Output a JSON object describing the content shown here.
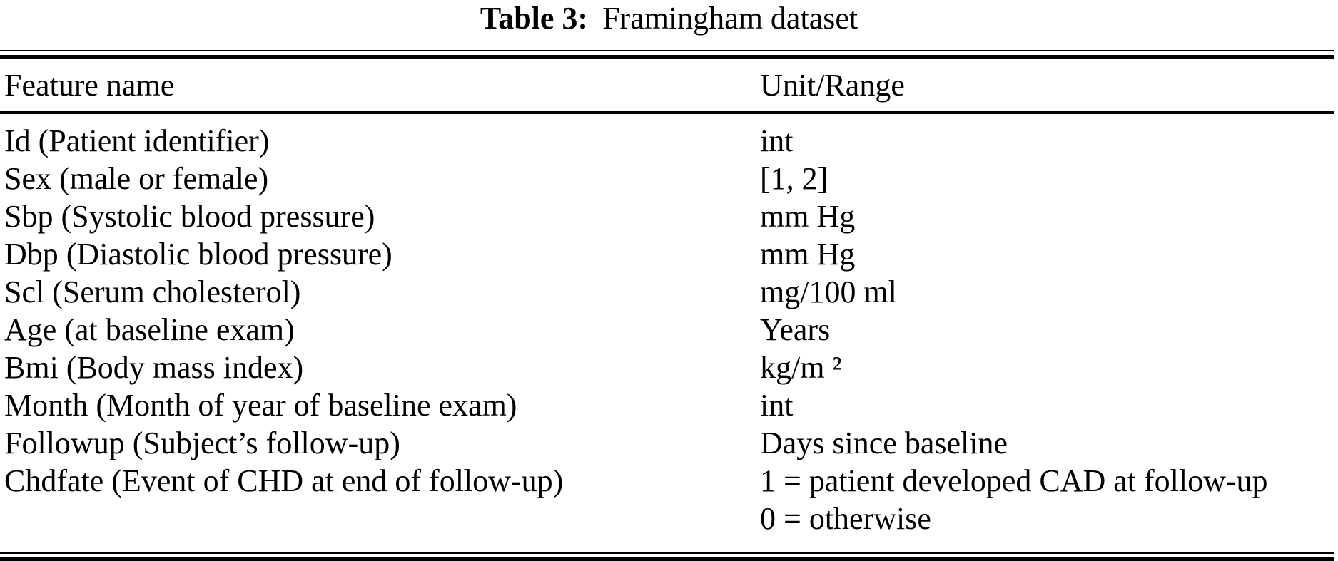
{
  "caption": {
    "label": "Table 3:",
    "title": "Framingham dataset"
  },
  "table": {
    "headers": [
      "Feature name",
      "Unit/Range"
    ],
    "rows": [
      {
        "feature": "Id (Patient identifier)",
        "units": [
          "int"
        ]
      },
      {
        "feature": "Sex (male or female)",
        "units": [
          "[1, 2]"
        ]
      },
      {
        "feature": "Sbp (Systolic blood pressure)",
        "units": [
          "mm Hg"
        ]
      },
      {
        "feature": "Dbp (Diastolic blood pressure)",
        "units": [
          "mm Hg"
        ]
      },
      {
        "feature": "Scl (Serum cholesterol)",
        "units": [
          "mg/100 ml"
        ]
      },
      {
        "feature": "Age (at baseline exam)",
        "units": [
          "Years"
        ]
      },
      {
        "feature": "Bmi (Body mass index)",
        "units": [
          "kg/m ²"
        ]
      },
      {
        "feature": "Month (Month of year of baseline exam)",
        "units": [
          "int"
        ]
      },
      {
        "feature": "Followup (Subject’s follow-up)",
        "units": [
          "Days since baseline"
        ]
      },
      {
        "feature": "Chdfate (Event of CHD at end of follow-up)",
        "units": [
          "1 = patient developed CAD at follow-up",
          "0 = otherwise"
        ]
      }
    ]
  },
  "colors": {
    "background": "#ffffff",
    "text": "#000000",
    "rule": "#000000"
  }
}
